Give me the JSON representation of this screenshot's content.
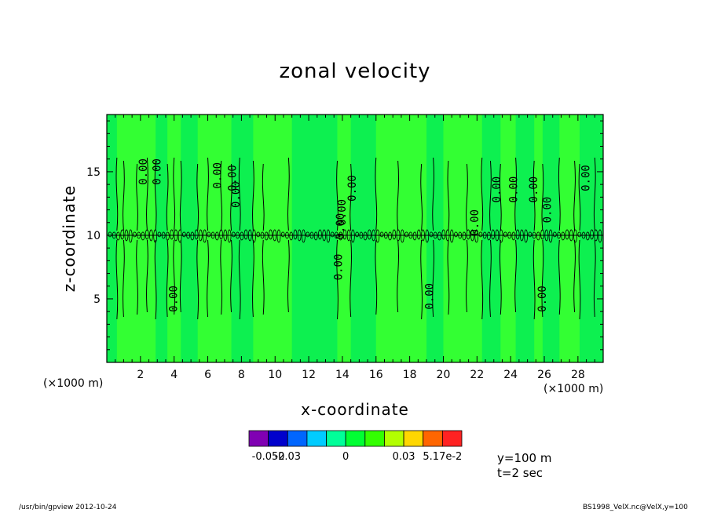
{
  "chart_data": {
    "type": "heatmap",
    "title": "zonal velocity",
    "xlabel": "x-coordinate",
    "ylabel": "z-coordinate",
    "x_unit_label": "(×1000 m)",
    "y_unit_label": "(×1000 m)",
    "xlim": [
      0,
      29.5
    ],
    "ylim": [
      0,
      19.5
    ],
    "x_ticks": [
      2,
      4,
      6,
      8,
      10,
      12,
      14,
      16,
      18,
      20,
      22,
      24,
      26,
      28
    ],
    "y_ticks": [
      5,
      10,
      15
    ],
    "background_color": "#33ff33",
    "column_bands": [
      {
        "x0": 0.0,
        "x1": 0.6,
        "color": "#0df050"
      },
      {
        "x0": 2.9,
        "x1": 3.6,
        "color": "#0df050"
      },
      {
        "x0": 4.4,
        "x1": 5.4,
        "color": "#0df050"
      },
      {
        "x0": 7.4,
        "x1": 8.7,
        "color": "#0df050"
      },
      {
        "x0": 11.0,
        "x1": 13.7,
        "color": "#0df050"
      },
      {
        "x0": 14.5,
        "x1": 16.0,
        "color": "#0df050"
      },
      {
        "x0": 19.0,
        "x1": 20.0,
        "color": "#0df050"
      },
      {
        "x0": 22.3,
        "x1": 23.4,
        "color": "#0df050"
      },
      {
        "x0": 24.3,
        "x1": 25.4,
        "color": "#0df050"
      },
      {
        "x0": 25.9,
        "x1": 26.9,
        "color": "#0df050"
      },
      {
        "x0": 28.1,
        "x1": 29.5,
        "color": "#0df050"
      }
    ],
    "contour_level_label": "0.00",
    "contour_x": [
      0.6,
      1.0,
      1.8,
      2.4,
      2.9,
      3.6,
      4.0,
      4.4,
      5.4,
      6.0,
      6.8,
      7.4,
      7.9,
      8.7,
      9.3,
      10.8,
      13.7,
      14.5,
      16.0,
      17.3,
      18.7,
      19.4,
      20.3,
      21.4,
      22.3,
      22.8,
      23.4,
      24.3,
      25.4,
      25.9,
      26.9,
      27.8,
      28.1,
      29.0
    ],
    "contour_labels": [
      {
        "x": 2.2,
        "z": 15.0
      },
      {
        "x": 3.0,
        "z": 15.0
      },
      {
        "x": 6.6,
        "z": 14.7
      },
      {
        "x": 7.5,
        "z": 14.5
      },
      {
        "x": 7.7,
        "z": 13.2
      },
      {
        "x": 14.6,
        "z": 13.7
      },
      {
        "x": 14.0,
        "z": 11.8
      },
      {
        "x": 13.9,
        "z": 10.7
      },
      {
        "x": 13.8,
        "z": 7.5
      },
      {
        "x": 21.9,
        "z": 11.0
      },
      {
        "x": 23.2,
        "z": 13.6
      },
      {
        "x": 24.2,
        "z": 13.6
      },
      {
        "x": 25.4,
        "z": 13.6
      },
      {
        "x": 26.2,
        "z": 12.0
      },
      {
        "x": 28.5,
        "z": 14.5
      },
      {
        "x": 19.2,
        "z": 5.2
      },
      {
        "x": 4.0,
        "z": 5.0
      },
      {
        "x": 25.9,
        "z": 5.0
      }
    ],
    "colorbar": {
      "colors": [
        "#8000b3",
        "#0000cc",
        "#0066ff",
        "#00ccff",
        "#00ff99",
        "#00ff33",
        "#33ff00",
        "#b3ff00",
        "#ffd700",
        "#ff6600",
        "#ff2222"
      ],
      "tick_labels": [
        "-0.052",
        "-0.03",
        "0",
        "0.03",
        "5.17e-2"
      ]
    }
  },
  "info": {
    "y_text": "y=100  m",
    "t_text": "t=2 sec"
  },
  "footer": {
    "left": "/usr/bin/gpview   2012-10-24",
    "right": "BS1998_VelX.nc@VelX,y=100"
  }
}
